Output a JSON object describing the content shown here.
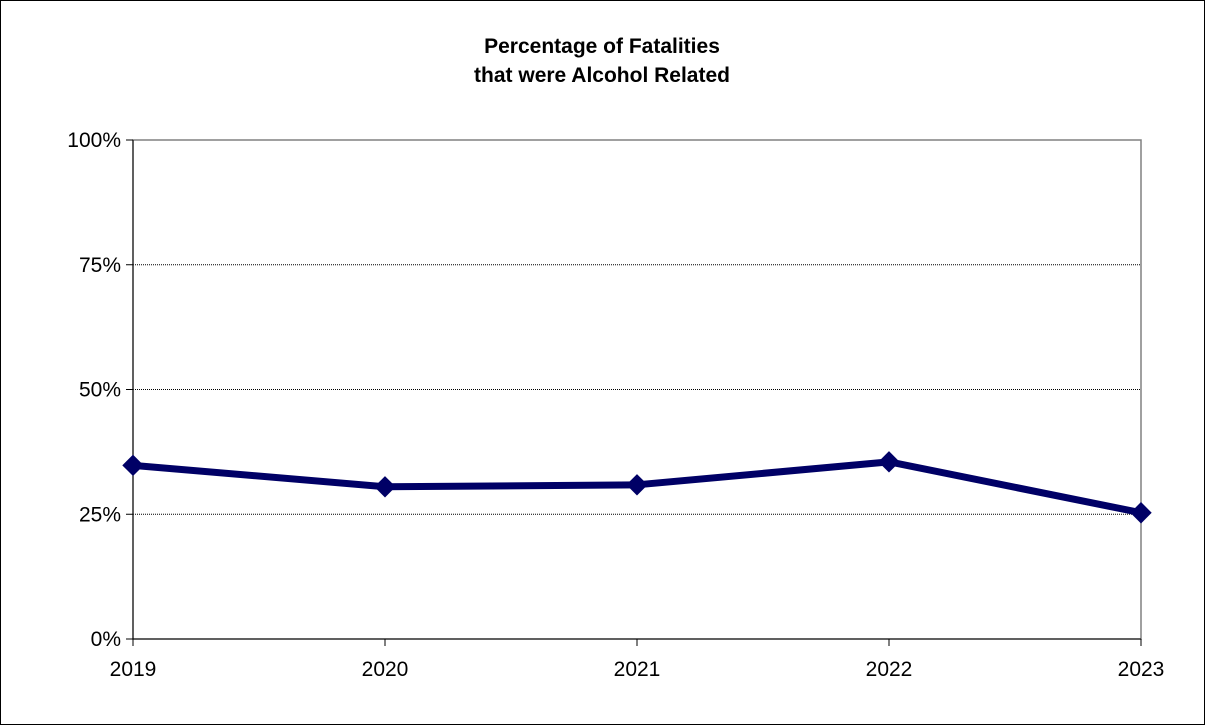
{
  "chart_data": {
    "type": "line",
    "title": [
      "Percentage of Fatalities",
      "that were Alcohol Related"
    ],
    "xlabel": "",
    "ylabel": "",
    "categories": [
      "2019",
      "2020",
      "2021",
      "2022",
      "2023"
    ],
    "series": [
      {
        "values": [
          34.8,
          30.5,
          30.9,
          35.5,
          25.3
        ]
      }
    ],
    "ylim": [
      0,
      100
    ],
    "yticks": [
      0,
      25,
      50,
      75,
      100
    ],
    "ytick_labels": [
      "0%",
      "25%",
      "50%",
      "75%",
      "100%"
    ],
    "grid": true,
    "legend": "none",
    "colors": {
      "line": "#000066",
      "marker": "#000066",
      "grid": "#000000",
      "plot_border": "#808080"
    }
  }
}
